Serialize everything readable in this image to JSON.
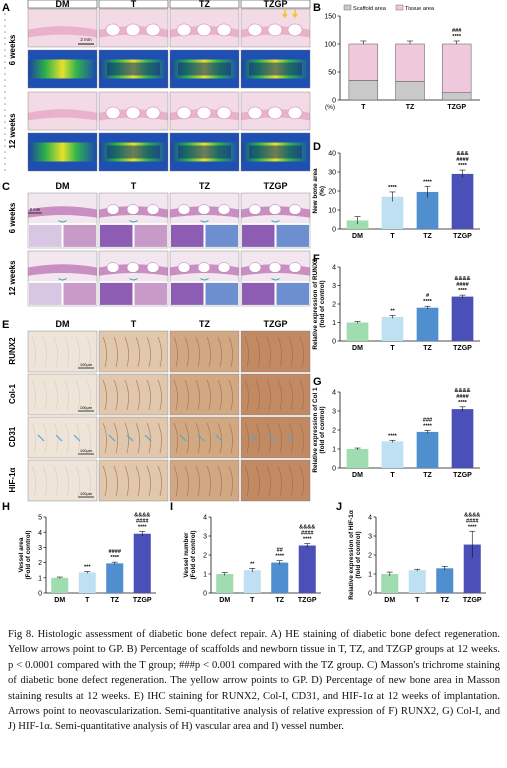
{
  "figure": {
    "panel_letters": [
      "A",
      "B",
      "C",
      "D",
      "E",
      "F",
      "G",
      "H",
      "I",
      "J"
    ],
    "group_labels": [
      "DM",
      "T",
      "TZ",
      "TZGP"
    ],
    "timepoints": [
      "6 weeks",
      "12 weeks"
    ],
    "stains": [
      "RUNX2",
      "Col-1",
      "CD31",
      "HIF-1α"
    ],
    "scale_labels": [
      "2 mm",
      "2 mm",
      "100μm",
      "100μm",
      "100μm",
      "100μm"
    ],
    "colors": {
      "DM": "#9fdcb0",
      "T": "#bfe0f2",
      "TZ": "#4f8fd0",
      "TZGP": "#4a50b8",
      "scaffold": "#c9c9c9",
      "tissue": "#f0c8dc"
    }
  },
  "caption": {
    "text": "Fig 8. Histologic assessment of diabetic bone defect repair. A) HE staining of diabetic bone defect regeneration. Yellow arrows point to GP. B) Percentage of scaffolds and newborn tissue in T, TZ, and TZGP groups at 12 weeks. p < 0.0001 compared with the T group; ###p < 0.001 compared with the TZ group. C) Masson's trichrome staining of diabetic bone defect regeneration. The yellow arrow points to GP. D) Percentage of new bone area in Masson staining results at 12 weeks. E) IHC staining for RUNX2, Col-I, CD31, and HIF-1α at 12 weeks of implantation. Arrows point to neovascularization. Semi-quantitative analysis of relative expression of F) RUNX2, G) Col-I, and J) HIF-1α. Semi-quantitative analysis of H) vascular area and I) vessel number."
  },
  "chart_data": [
    {
      "id": "B",
      "type": "bar",
      "categories": [
        "T",
        "TZ",
        "TZGP"
      ],
      "series": [
        {
          "name": "Scaffold area",
          "values": [
            35,
            33,
            13
          ]
        },
        {
          "name": "Tissue area",
          "values": [
            65,
            67,
            87
          ]
        }
      ],
      "stacked": true,
      "title": "",
      "xlabel": "(%)",
      "ylabel": "",
      "ylim": [
        0,
        150
      ],
      "yticks": [
        0,
        50,
        100,
        150
      ],
      "annotations": {
        "TZGP": [
          "****",
          "###"
        ]
      },
      "legend": "top"
    },
    {
      "id": "D",
      "type": "bar",
      "categories": [
        "DM",
        "T",
        "TZ",
        "TZGP"
      ],
      "values": [
        4.5,
        17,
        19.5,
        29
      ],
      "errors": [
        2,
        2.5,
        3,
        2
      ],
      "title": "",
      "xlabel": "",
      "ylabel": "New bone area (%)",
      "ylim": [
        0,
        40
      ],
      "yticks": [
        0,
        10,
        20,
        30,
        40
      ],
      "annotations": {
        "T": [
          "****"
        ],
        "TZ": [
          "****"
        ],
        "TZGP": [
          "****",
          "####",
          "&&&"
        ]
      }
    },
    {
      "id": "F",
      "type": "bar",
      "categories": [
        "DM",
        "T",
        "TZ",
        "TZGP"
      ],
      "values": [
        1.0,
        1.3,
        1.8,
        2.4
      ],
      "errors": [
        0.05,
        0.08,
        0.08,
        0.08
      ],
      "title": "",
      "xlabel": "",
      "ylabel": "Relative expression of RUNX2 (fold of control)",
      "ylim": [
        0,
        4
      ],
      "yticks": [
        0,
        1,
        2,
        3,
        4
      ],
      "annotations": {
        "T": [
          "**"
        ],
        "TZ": [
          "****",
          "#"
        ],
        "TZGP": [
          "****",
          "####",
          "&&&&"
        ]
      }
    },
    {
      "id": "G",
      "type": "bar",
      "categories": [
        "DM",
        "T",
        "TZ",
        "TZGP"
      ],
      "values": [
        1.0,
        1.4,
        1.9,
        3.1
      ],
      "errors": [
        0.05,
        0.06,
        0.08,
        0.12
      ],
      "title": "",
      "xlabel": "",
      "ylabel": "Relative expression of Col 1 (fold of control)",
      "ylim": [
        0,
        4
      ],
      "yticks": [
        0,
        1,
        2,
        3,
        4
      ],
      "annotations": {
        "T": [
          "****"
        ],
        "TZ": [
          "****",
          "###"
        ],
        "TZGP": [
          "****",
          "####",
          "&&&&"
        ]
      }
    },
    {
      "id": "H",
      "type": "bar",
      "categories": [
        "DM",
        "T",
        "TZ",
        "TZGP"
      ],
      "values": [
        1.0,
        1.35,
        1.95,
        3.9
      ],
      "errors": [
        0.05,
        0.06,
        0.08,
        0.15
      ],
      "title": "",
      "xlabel": "",
      "ylabel": "Vessel area (Fold of control)",
      "ylim": [
        0,
        5
      ],
      "yticks": [
        0,
        1,
        2,
        3,
        4,
        5
      ],
      "annotations": {
        "T": [
          "***"
        ],
        "TZ": [
          "****",
          "####"
        ],
        "TZGP": [
          "****",
          "####",
          "&&&&"
        ]
      }
    },
    {
      "id": "I",
      "type": "bar",
      "categories": [
        "DM",
        "T",
        "TZ",
        "TZGP"
      ],
      "values": [
        1.0,
        1.2,
        1.6,
        2.5
      ],
      "errors": [
        0.08,
        0.1,
        0.1,
        0.1
      ],
      "title": "",
      "xlabel": "",
      "ylabel": "Vessel number (Fold of control)",
      "ylim": [
        0,
        4
      ],
      "yticks": [
        0,
        1,
        2,
        3,
        4
      ],
      "annotations": {
        "T": [
          "**"
        ],
        "TZ": [
          "****",
          "##"
        ],
        "TZGP": [
          "****",
          "####",
          "&&&&"
        ]
      }
    },
    {
      "id": "J",
      "type": "bar",
      "categories": [
        "DM",
        "T",
        "TZ",
        "TZGP"
      ],
      "values": [
        1.0,
        1.2,
        1.3,
        2.55
      ],
      "errors": [
        0.1,
        0.05,
        0.1,
        0.7
      ],
      "title": "",
      "xlabel": "",
      "ylabel": "Relative expression of HIF-1α (fold of control)",
      "ylim": [
        0,
        4
      ],
      "yticks": [
        0,
        1,
        2,
        3,
        4
      ],
      "annotations": {
        "TZGP": [
          "****",
          "####",
          "&&&&"
        ]
      }
    }
  ]
}
